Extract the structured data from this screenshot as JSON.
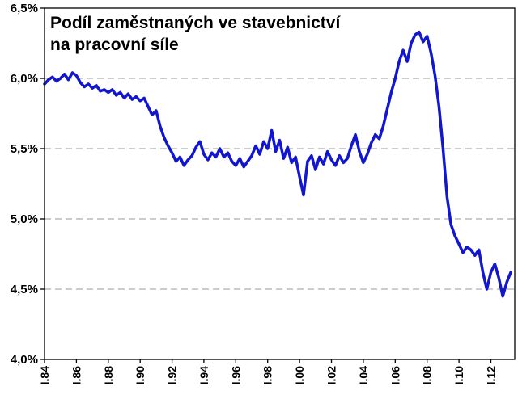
{
  "chart": {
    "title_line1": "Podíl zaměstnaných ve stavebnictví",
    "title_line2": "na pracovní síle"
  },
  "chart_data": {
    "type": "line",
    "title": "Podíl zaměstnaných ve stavebnictví na pracovní síle",
    "xlabel": "",
    "ylabel": "",
    "legend": "none",
    "grid": "dashed-horizontal",
    "line_color": "#1216cd",
    "grid_color": "#999999",
    "axis_color": "#000000",
    "xlim": [
      1984,
      2013.5
    ],
    "ylim": [
      4.0,
      6.5
    ],
    "x_start": 1984,
    "x_step": 0.25,
    "x_unit": "year (quarterly observations)",
    "y_unit": "percent of labour force",
    "values": [
      5.96,
      5.99,
      6.01,
      5.98,
      6.0,
      6.03,
      5.99,
      6.04,
      6.02,
      5.97,
      5.94,
      5.96,
      5.93,
      5.95,
      5.91,
      5.92,
      5.9,
      5.92,
      5.88,
      5.9,
      5.86,
      5.89,
      5.85,
      5.87,
      5.84,
      5.86,
      5.8,
      5.74,
      5.77,
      5.66,
      5.58,
      5.52,
      5.47,
      5.41,
      5.44,
      5.38,
      5.42,
      5.45,
      5.51,
      5.55,
      5.46,
      5.42,
      5.47,
      5.44,
      5.5,
      5.44,
      5.47,
      5.41,
      5.38,
      5.43,
      5.37,
      5.41,
      5.45,
      5.52,
      5.46,
      5.55,
      5.5,
      5.63,
      5.48,
      5.56,
      5.43,
      5.51,
      5.4,
      5.44,
      5.3,
      5.17,
      5.41,
      5.45,
      5.35,
      5.44,
      5.39,
      5.48,
      5.42,
      5.38,
      5.45,
      5.4,
      5.43,
      5.52,
      5.6,
      5.48,
      5.4,
      5.46,
      5.54,
      5.6,
      5.57,
      5.66,
      5.78,
      5.9,
      6.0,
      6.12,
      6.2,
      6.12,
      6.25,
      6.31,
      6.33,
      6.26,
      6.3,
      6.18,
      6.02,
      5.8,
      5.5,
      5.16,
      4.96,
      4.88,
      4.82,
      4.76,
      4.8,
      4.78,
      4.74,
      4.78,
      4.62,
      4.5,
      4.62,
      4.68,
      4.58,
      4.45,
      4.55,
      4.62
    ],
    "grid_y": [
      4.5,
      5.0,
      5.5,
      6.0
    ],
    "y_ticks": [
      {
        "v": 6.5,
        "label": "6,5%"
      },
      {
        "v": 6.0,
        "label": "6,0%"
      },
      {
        "v": 5.5,
        "label": "5,5%"
      },
      {
        "v": 5.0,
        "label": "5,0%"
      },
      {
        "v": 4.5,
        "label": "4,5%"
      },
      {
        "v": 4.0,
        "label": "4,0%"
      }
    ],
    "x_ticks": [
      {
        "v": 1984,
        "label": "I.84"
      },
      {
        "v": 1986,
        "label": "I.86"
      },
      {
        "v": 1988,
        "label": "I.88"
      },
      {
        "v": 1990,
        "label": "I.90"
      },
      {
        "v": 1992,
        "label": "I.92"
      },
      {
        "v": 1994,
        "label": "I.94"
      },
      {
        "v": 1996,
        "label": "I.96"
      },
      {
        "v": 1998,
        "label": "I.98"
      },
      {
        "v": 2000,
        "label": "I.00"
      },
      {
        "v": 2002,
        "label": "I.02"
      },
      {
        "v": 2004,
        "label": "I.04"
      },
      {
        "v": 2006,
        "label": "I.06"
      },
      {
        "v": 2008,
        "label": "I.08"
      },
      {
        "v": 2010,
        "label": "I.10"
      },
      {
        "v": 2012,
        "label": "I.12"
      }
    ]
  }
}
